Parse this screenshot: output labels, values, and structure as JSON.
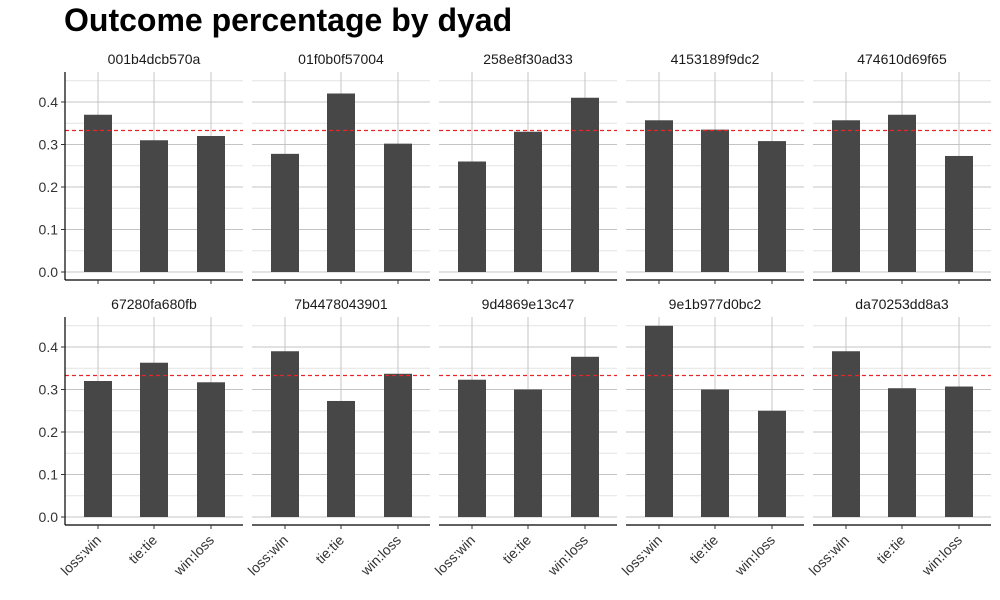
{
  "chart_data": {
    "type": "bar",
    "title": "Outcome percentage by dyad",
    "xlabel": "",
    "ylabel": "",
    "categories": [
      "loss:win",
      "tie:tie",
      "win:loss"
    ],
    "ylim": [
      0,
      0.47
    ],
    "yticks": [
      0.0,
      0.1,
      0.2,
      0.3,
      0.4
    ],
    "ytick_labels": [
      "0.0",
      "0.1",
      "0.2",
      "0.3",
      "0.4"
    ],
    "reference_line": {
      "value": 0.333,
      "style": "dashed",
      "color": "#e8262a"
    },
    "bar_color": "#474747",
    "grid": true,
    "facet_layout": {
      "rows": 2,
      "cols": 5
    },
    "facets": [
      {
        "name": "001b4dcb570a",
        "values": [
          0.37,
          0.31,
          0.32
        ]
      },
      {
        "name": "01f0b0f57004",
        "values": [
          0.278,
          0.42,
          0.302
        ]
      },
      {
        "name": "258e8f30ad33",
        "values": [
          0.26,
          0.33,
          0.41
        ]
      },
      {
        "name": "4153189f9dc2",
        "values": [
          0.357,
          0.335,
          0.308
        ]
      },
      {
        "name": "474610d69f65",
        "values": [
          0.357,
          0.37,
          0.273
        ]
      },
      {
        "name": "67280fa680fb",
        "values": [
          0.32,
          0.363,
          0.317
        ]
      },
      {
        "name": "7b4478043901",
        "values": [
          0.39,
          0.273,
          0.337
        ]
      },
      {
        "name": "9d4869e13c47",
        "values": [
          0.323,
          0.3,
          0.377
        ]
      },
      {
        "name": "9e1b977d0bc2",
        "values": [
          0.45,
          0.3,
          0.25
        ]
      },
      {
        "name": "da70253dd8a3",
        "values": [
          0.39,
          0.303,
          0.307
        ]
      }
    ]
  }
}
